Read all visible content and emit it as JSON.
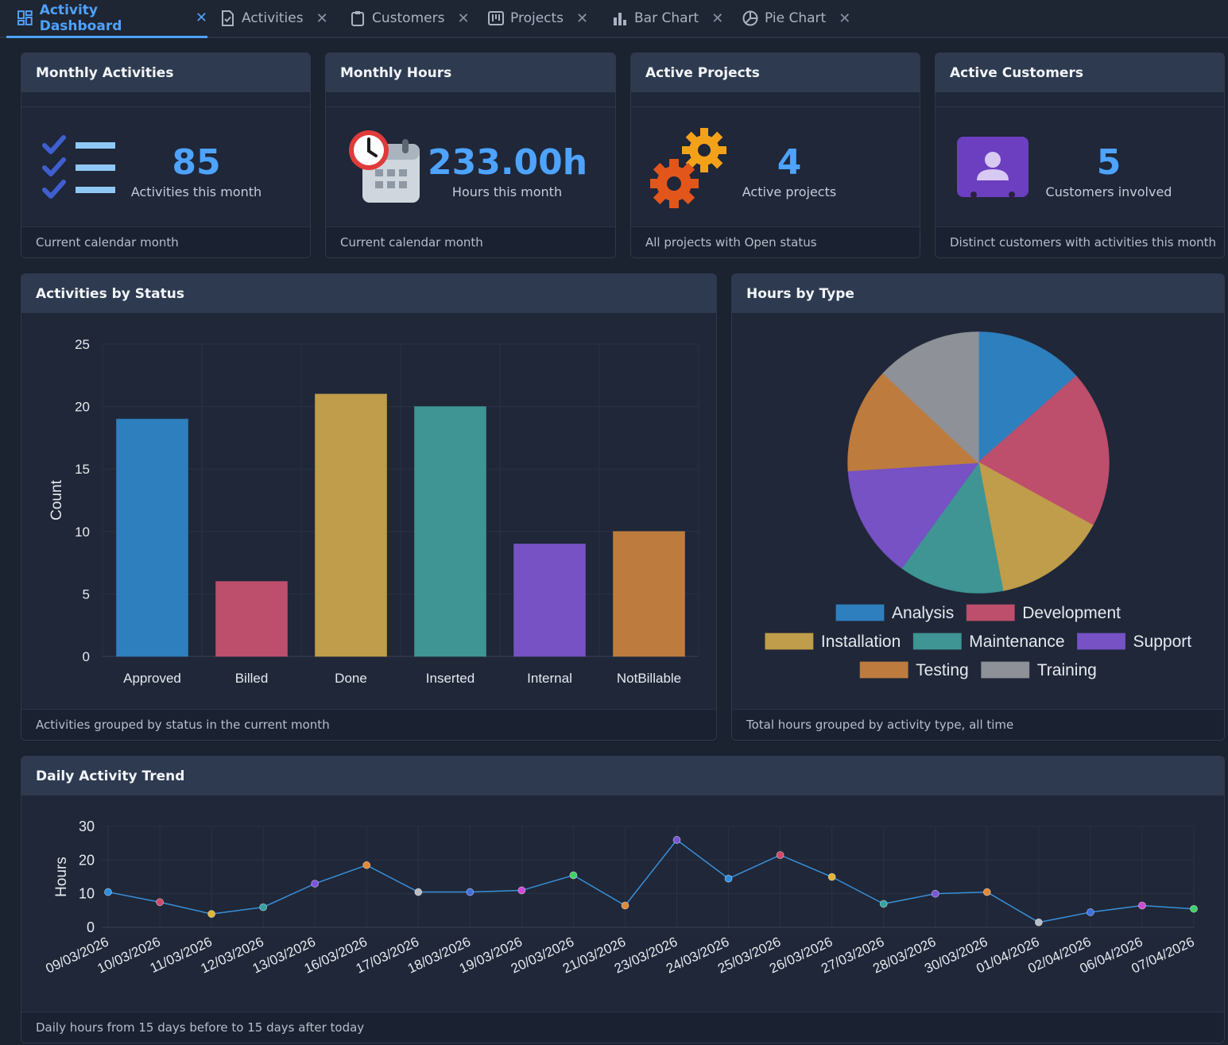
{
  "tabs": [
    {
      "label": "Activity Dashboard",
      "icon": "dashboard-icon",
      "active": true
    },
    {
      "label": "Activities",
      "icon": "checklist-doc-icon",
      "active": false
    },
    {
      "label": "Customers",
      "icon": "clipboard-icon",
      "active": false
    },
    {
      "label": "Projects",
      "icon": "kanban-icon",
      "active": false
    },
    {
      "label": "Bar Chart",
      "icon": "bar-chart-icon",
      "active": false
    },
    {
      "label": "Pie Chart",
      "icon": "pie-chart-icon",
      "active": false
    }
  ],
  "kpis": [
    {
      "title": "Monthly Activities",
      "value": "85",
      "label": "Activities this month",
      "footer": "Current calendar month",
      "icon": "checklist-icon"
    },
    {
      "title": "Monthly Hours",
      "value": "233.00h",
      "label": "Hours this month",
      "footer": "Current calendar month",
      "icon": "calendar-clock-icon"
    },
    {
      "title": "Active Projects",
      "value": "4",
      "label": "Active projects",
      "footer": "All projects with Open status",
      "icon": "gears-icon"
    },
    {
      "title": "Active Customers",
      "value": "5",
      "label": "Customers involved",
      "footer": "Distinct customers with activities this month",
      "icon": "contact-card-icon"
    }
  ],
  "status_panel": {
    "title": "Activities by Status",
    "footer": "Activities grouped by status in the current month"
  },
  "type_panel": {
    "title": "Hours by Type",
    "footer": "Total hours grouped by activity type, all time"
  },
  "trend_panel": {
    "title": "Daily Activity Trend",
    "footer": "Daily hours from 15 days before to 15 days after today"
  },
  "colors": {
    "accent": "#4da3ff",
    "panel_head": "#2e3a4f",
    "panel_bg": "#1f2738"
  },
  "chart_data": [
    {
      "type": "bar",
      "categories": [
        "Approved",
        "Billed",
        "Done",
        "Inserted",
        "Internal",
        "NotBillable"
      ],
      "values": [
        19,
        6,
        21,
        20,
        9,
        10
      ],
      "colors": [
        "#2e7fbd",
        "#bd4f6c",
        "#c09d4a",
        "#3e9594",
        "#7652c4",
        "#bd7c3e"
      ],
      "ylabel": "Count",
      "ylim": [
        0,
        25
      ],
      "yticks": [
        0,
        5,
        10,
        15,
        20,
        25
      ],
      "grid": true
    },
    {
      "type": "pie",
      "labels": [
        "Analysis",
        "Development",
        "Installation",
        "Maintenance",
        "Support",
        "Testing",
        "Training"
      ],
      "values": [
        13.5,
        19.5,
        14,
        13,
        14,
        13,
        13
      ],
      "colors": [
        "#2e7fbd",
        "#bd4f6c",
        "#c09d4a",
        "#3e9594",
        "#7652c4",
        "#bd7c3e",
        "#8e9197"
      ],
      "legend": "bottom"
    },
    {
      "type": "line",
      "x": [
        "09/03/2026",
        "10/03/2026",
        "11/03/2026",
        "12/03/2026",
        "13/03/2026",
        "16/03/2026",
        "17/03/2026",
        "18/03/2026",
        "19/03/2026",
        "20/03/2026",
        "21/03/2026",
        "23/03/2026",
        "24/03/2026",
        "25/03/2026",
        "26/03/2026",
        "27/03/2026",
        "28/03/2026",
        "30/03/2026",
        "01/04/2026",
        "02/04/2026",
        "06/04/2026",
        "07/04/2026"
      ],
      "values": [
        10.5,
        7.5,
        4,
        6,
        13,
        18.5,
        10.5,
        10.5,
        11,
        15.5,
        6.5,
        26,
        14.5,
        21.5,
        15,
        7,
        10,
        10.5,
        1.5,
        4.5,
        6.5,
        5.5
      ],
      "point_colors": [
        "#2e8fdf",
        "#d2486b",
        "#e0b53a",
        "#36a3a0",
        "#7a55d8",
        "#e08a35",
        "#b8bcc4",
        "#3f6fe0",
        "#d04ad8",
        "#43d06a",
        "#e08a35",
        "#7a55d8",
        "#2e8fdf",
        "#d2486b",
        "#e0b53a",
        "#36a3a0",
        "#7a55d8",
        "#e08a35",
        "#b8bcc4",
        "#3f6fe0",
        "#d04ad8",
        "#43d06a"
      ],
      "ylabel": "Hours",
      "ylim": [
        0,
        30
      ],
      "yticks": [
        0,
        10,
        20,
        30
      ],
      "grid": true
    }
  ]
}
